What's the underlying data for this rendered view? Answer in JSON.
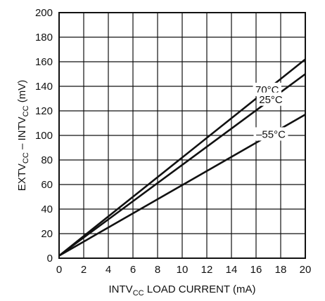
{
  "chart_data": {
    "type": "line",
    "title": "",
    "xlabel": {
      "pre": "INTV",
      "sub": "CC",
      "post": " LOAD CURRENT (mA)"
    },
    "ylabel": {
      "a": "EXTV",
      "a_sub": "CC",
      "mid": " – INTV",
      "b_sub": "CC",
      "post": " (mV)"
    },
    "xlim": [
      0,
      20
    ],
    "ylim": [
      0,
      200
    ],
    "xticks": [
      "0",
      "2",
      "4",
      "6",
      "8",
      "10",
      "12",
      "14",
      "16",
      "18",
      "20"
    ],
    "yticks": [
      "0",
      "20",
      "40",
      "60",
      "80",
      "100",
      "120",
      "140",
      "160",
      "180",
      "200"
    ],
    "grid": true,
    "series": [
      {
        "name": "70°C",
        "x": [
          0,
          20
        ],
        "y": [
          2,
          162
        ]
      },
      {
        "name": "25°C",
        "x": [
          0,
          20
        ],
        "y": [
          2,
          150
        ]
      },
      {
        "name": "–55°C",
        "x": [
          0,
          20
        ],
        "y": [
          2,
          117
        ]
      }
    ],
    "colors": {
      "line": "#111111",
      "grid": "#111111",
      "background": "#ffffff"
    }
  }
}
